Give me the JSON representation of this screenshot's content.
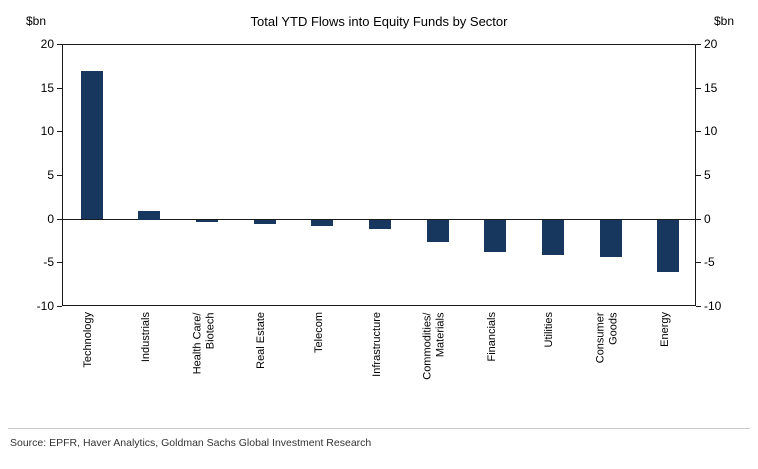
{
  "header": {
    "title": "Total YTD Flows into Equity Funds by Sector",
    "unit_left": "$bn",
    "unit_right": "$bn"
  },
  "footer": {
    "source": "Source: EPFR, Haver Analytics, Goldman Sachs Global Investment Research"
  },
  "chart_data": {
    "type": "bar",
    "title": "Total YTD Flows into Equity Funds by Sector",
    "categories": [
      "Technology",
      "Industrials",
      "Health Care/\nBiotech",
      "Real Estate",
      "Telecom",
      "Infrastructure",
      "Commodities/\nMaterials",
      "Financials",
      "Utilities",
      "Consumer\nGoods",
      "Energy"
    ],
    "values": [
      17,
      1,
      -0.2,
      -0.5,
      -0.7,
      -1,
      -2.5,
      -3.7,
      -4,
      -4.2,
      -6
    ],
    "xlabel": "",
    "ylabel": "$bn",
    "ylim": [
      -10,
      20
    ],
    "yticks": [
      20,
      15,
      10,
      5,
      0,
      -5,
      -10
    ],
    "bar_color": "#17375e",
    "grid": false,
    "legend": false,
    "axis_unit_left": "$bn",
    "axis_unit_right": "$bn"
  }
}
